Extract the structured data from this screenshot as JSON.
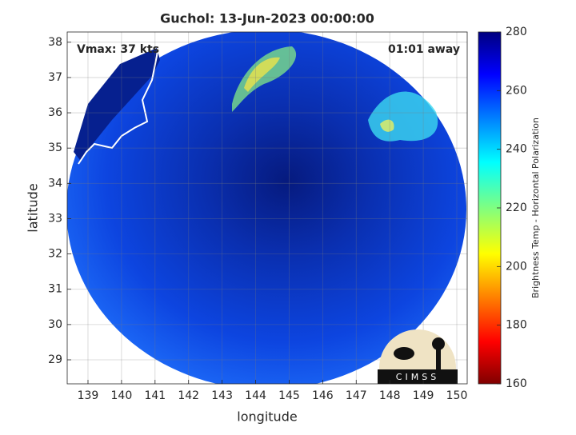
{
  "title": "Guchol: 13-Jun-2023 00:00:00",
  "annotations": {
    "vmax": "Vmax: 37 kts",
    "away": "01:01 away"
  },
  "logo": "CIMSS",
  "x_label": "longitude",
  "y_label": "latitude",
  "xlim": [
    138.38,
    150.31
  ],
  "xticks": [
    139,
    140,
    141,
    142,
    143,
    144,
    145,
    146,
    147,
    148,
    149,
    150
  ],
  "ylim": [
    28.32,
    38.29
  ],
  "yticks": [
    29,
    30,
    31,
    32,
    33,
    34,
    35,
    36,
    37,
    38
  ],
  "grid": true,
  "colorbar": {
    "label": "Brightness Temp - Horizontal Polarization",
    "lim": [
      160,
      280
    ],
    "ticks": [
      160,
      180,
      200,
      220,
      240,
      260,
      280
    ]
  }
}
